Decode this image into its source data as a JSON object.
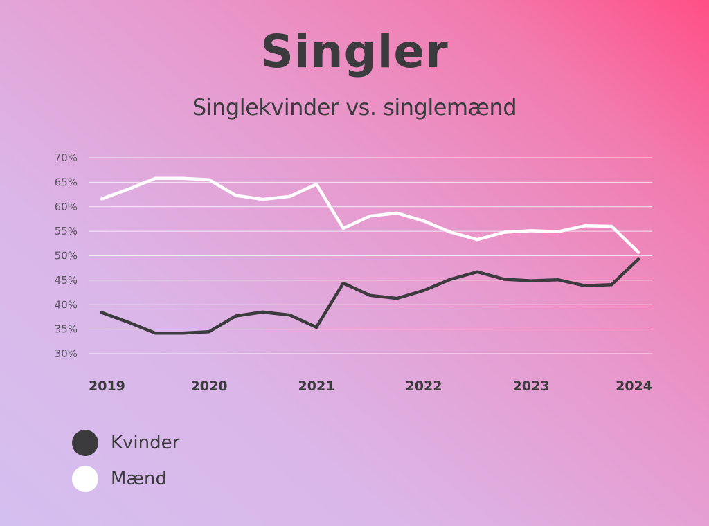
{
  "header": {
    "title": "Singler",
    "subtitle": "Singlekvinder vs. singlemænd"
  },
  "colors": {
    "kvinder": "#3b3a3d",
    "maend": "#ffffff",
    "grid": "#ffffff",
    "text": "#3b3a3d"
  },
  "legend": {
    "items": [
      {
        "label": "Kvinder"
      },
      {
        "label": "Mænd"
      }
    ]
  },
  "chart_data": {
    "type": "line",
    "title": "Singler",
    "subtitle": "Singlekvinder vs. singlemænd",
    "xlabel": "",
    "ylabel": "",
    "x": [
      2019.0,
      2019.25,
      2019.5,
      2019.75,
      2020.0,
      2020.25,
      2020.5,
      2020.75,
      2021.0,
      2021.25,
      2021.5,
      2021.75,
      2022.0,
      2022.25,
      2022.5,
      2022.75,
      2023.0,
      2023.25,
      2023.5,
      2023.75,
      2024.0
    ],
    "x_ticks": [
      2019,
      2020,
      2021,
      2022,
      2023,
      2024
    ],
    "y_ticks": [
      30,
      35,
      40,
      45,
      50,
      55,
      60,
      65,
      70
    ],
    "y_tick_labels": [
      "30%",
      "35%",
      "40%",
      "45%",
      "50%",
      "55%",
      "60%",
      "65%",
      "70%"
    ],
    "xlim": [
      2019.0,
      2024.0
    ],
    "ylim": [
      30,
      70
    ],
    "grid": "horizontal",
    "legend_position": "bottom-left",
    "series": [
      {
        "name": "Kvinder",
        "values": [
          38.4,
          36.4,
          34.2,
          34.2,
          34.5,
          37.7,
          38.5,
          37.9,
          35.4,
          44.4,
          41.9,
          41.3,
          42.9,
          45.2,
          46.7,
          45.2,
          44.9,
          45.1,
          43.9,
          44.1,
          49.3
        ]
      },
      {
        "name": "Mænd",
        "values": [
          61.6,
          63.6,
          65.8,
          65.8,
          65.5,
          62.3,
          61.5,
          62.1,
          64.6,
          55.6,
          58.1,
          58.7,
          57.1,
          54.8,
          53.3,
          54.8,
          55.1,
          54.9,
          56.1,
          56.0,
          50.7
        ]
      }
    ]
  }
}
